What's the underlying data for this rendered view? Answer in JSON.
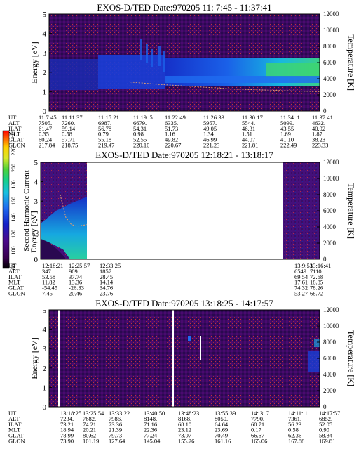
{
  "chart_data": [
    {
      "type": "heatmap",
      "title": "EXOS-D/TED   Date:970205  11: 7:45 - 11:37:41",
      "ylabel": "Energy [eV]",
      "y2label": "Temperature [K]",
      "ylim": [
        0,
        5
      ],
      "y2lim": [
        0,
        12000
      ],
      "yticks": [
        "0",
        "1",
        "2",
        "3",
        "4",
        "5"
      ],
      "y2ticks": [
        "0",
        "2000",
        "4000",
        "6000",
        "8000",
        "10000",
        "12000"
      ],
      "x_range": [
        "11:7:45",
        "11:37:41"
      ],
      "band": [
        {
          "start": 0.0,
          "end": 0.18,
          "lo": 1.3,
          "hi": 2.7,
          "level": "blue"
        },
        {
          "start": 0.18,
          "end": 0.32,
          "lo": 1.4,
          "hi": 2.9,
          "level": "blue-bright"
        },
        {
          "start": 0.32,
          "end": 0.75,
          "lo": 1.6,
          "hi": 2.9,
          "level": "cyan"
        },
        {
          "start": 0.75,
          "end": 1.0,
          "lo": 1.5,
          "hi": 3.1,
          "level": "green"
        }
      ],
      "temperature_trace": {
        "x": [
          0.3,
          0.4,
          0.5,
          0.6,
          0.7,
          0.8,
          0.9,
          1.0
        ],
        "y": [
          3600,
          3300,
          3100,
          2900,
          2700,
          2600,
          2500,
          2400
        ]
      },
      "ephemeris_labels": [
        "UT",
        "ALT",
        "ILAT",
        "MLT",
        "GLAT",
        "GLON"
      ],
      "ephemeris": [
        [
          "11:7:45",
          "7505.",
          "61.47",
          "0.35",
          "60.24",
          "217.84"
        ],
        [
          "11:11:37",
          "7260.",
          "59.14",
          "0.58",
          "57.71",
          "218.75"
        ],
        [
          "11:15:21",
          "6987.",
          "56.78",
          "0.79",
          "55.18",
          "219.47"
        ],
        [
          "11:19: 5",
          "6679.",
          "54.31",
          "0.98",
          "52.55",
          "220.10"
        ],
        [
          "11:22:49",
          "6335.",
          "51.73",
          "1.16",
          "49.82",
          "220.67"
        ],
        [
          "11:26:33",
          "5957.",
          "49.05",
          "1.34",
          "46.99",
          "221.23"
        ],
        [
          "11:30:17",
          "5544.",
          "46.31",
          "1.51",
          "44.07",
          "221.81"
        ],
        [
          "11:34: 1",
          "5099.",
          "43.55",
          "1.69",
          "41.10",
          "222.49"
        ],
        [
          "11:37:41",
          "4632.",
          "40.92",
          "1.87",
          "38.23",
          "223.33"
        ]
      ]
    },
    {
      "type": "heatmap",
      "title": "EXOS-D/TED   Date:970205  12:18:21 - 13:18:17",
      "ylabel": "Energy [eV]",
      "y2label": "Temperature [K]",
      "ylim": [
        0,
        5
      ],
      "y2lim": [
        0,
        12000
      ],
      "yticks": [
        "0",
        "1",
        "2",
        "3",
        "4",
        "5"
      ],
      "y2ticks": [
        "0",
        "2000",
        "4000",
        "6000",
        "8000",
        "10000",
        "12000"
      ],
      "data_segments": [
        [
          0.0,
          0.165
        ],
        [
          0.88,
          1.0
        ]
      ],
      "temperature_trace": {
        "x": [
          0.07,
          0.09,
          0.11,
          0.13,
          0.15,
          0.165
        ],
        "y": [
          8000,
          5200,
          4300,
          4100,
          4200,
          4300
        ]
      },
      "ephemeris_labels": [
        "UT",
        "ALT",
        "ILAT",
        "MLT",
        "GLAT",
        "GLON"
      ],
      "ephemeris": [
        [
          "12:18:21",
          "347.",
          "53.58",
          "11.82",
          "-54.45",
          "7.45"
        ],
        [
          "12:25:57",
          "909.",
          "37.74",
          "13.36",
          "-26.33",
          "20.46"
        ],
        [
          "12:33:25",
          "1857.",
          "28.45",
          "14.14",
          "34.76",
          "23.76"
        ],
        [
          "13:9:53",
          "6549.",
          "69.54",
          "17.61",
          "74.32",
          "53.27"
        ],
        [
          "13:16:41",
          "7110.",
          "72.68",
          "18.85",
          "78.26",
          "68.72"
        ]
      ]
    },
    {
      "type": "heatmap",
      "title": "EXOS-D/TED   Date:970205  13:18:25 - 14:17:57",
      "ylabel": "Energy [eV]",
      "y2label": "Temperature [K]",
      "ylim": [
        0,
        5
      ],
      "y2lim": [
        0,
        12000
      ],
      "yticks": [
        "0",
        "1",
        "2",
        "3",
        "4",
        "5"
      ],
      "y2ticks": [
        "0",
        "2000",
        "4000",
        "6000",
        "8000",
        "10000",
        "12000"
      ],
      "ephemeris_labels": [
        "UT",
        "ALT",
        "ILAT",
        "MLT",
        "GLAT",
        "GLON"
      ],
      "ephemeris": [
        [
          "13:18:25",
          "7234.",
          "73.21",
          "18.94",
          "78.99",
          "73.90"
        ],
        [
          "13:25:54",
          "7682.",
          "74.21",
          "20.21",
          "80.62",
          "101.19"
        ],
        [
          "13:33:22",
          "7986.",
          "73.36",
          "21.39",
          "79.73",
          "127.64"
        ],
        [
          "13:40:50",
          "8148.",
          "71.16",
          "22.36",
          "77.24",
          "145.04"
        ],
        [
          "13:48:23",
          "8168.",
          "68.10",
          "23.12",
          "73.97",
          "155.26"
        ],
        [
          "13:55:39",
          "8050.",
          "64.64",
          "23.69",
          "70.49",
          "161.16"
        ],
        [
          "14: 3: 7",
          "7790.",
          "60.71",
          "0.17",
          "66.67",
          "165.06"
        ],
        [
          "14:11: 1",
          "7361.",
          "56.23",
          "0.58",
          "62.36",
          "167.88"
        ],
        [
          "14:17:57",
          "6852.",
          "52.05",
          "0.90",
          "58.34",
          "169.81"
        ]
      ]
    }
  ],
  "colorbar": {
    "label": "Second Harmonic Current",
    "ticks": [
      "80",
      "100",
      "120",
      "140",
      "160",
      "180",
      "200",
      "220",
      "240"
    ],
    "colors": [
      "#000000",
      "#3a0050",
      "#4b0a8a",
      "#1520c8",
      "#1f6cf0",
      "#17c0e0",
      "#17d08a",
      "#4ed23a",
      "#d8e82a",
      "#ffd000",
      "#ff6a00",
      "#ff0000"
    ]
  }
}
